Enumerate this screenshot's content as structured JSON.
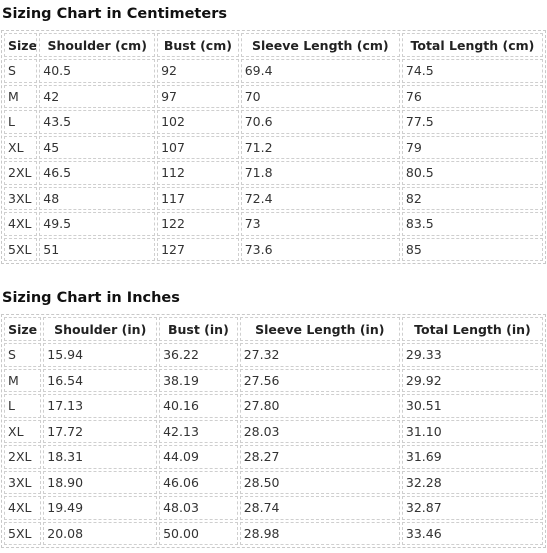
{
  "tables": [
    {
      "title": "Sizing Chart in Centimeters",
      "headers": [
        "Size",
        "Shoulder (cm)",
        "Bust (cm)",
        "Sleeve Length (cm)",
        "Total Length (cm)"
      ],
      "rows": [
        [
          "S",
          "40.5",
          "92",
          "69.4",
          "74.5"
        ],
        [
          "M",
          "42",
          "97",
          "70",
          "76"
        ],
        [
          "L",
          "43.5",
          "102",
          "70.6",
          "77.5"
        ],
        [
          "XL",
          "45",
          "107",
          "71.2",
          "79"
        ],
        [
          "2XL",
          "46.5",
          "112",
          "71.8",
          "80.5"
        ],
        [
          "3XL",
          "48",
          "117",
          "72.4",
          "82"
        ],
        [
          "4XL",
          "49.5",
          "122",
          "73",
          "83.5"
        ],
        [
          "5XL",
          "51",
          "127",
          "73.6",
          "85"
        ]
      ]
    },
    {
      "title": "Sizing Chart in Inches",
      "headers": [
        "Size",
        "Shoulder (in)",
        "Bust (in)",
        "Sleeve Length (in)",
        "Total Length (in)"
      ],
      "rows": [
        [
          "S",
          "15.94",
          "36.22",
          "27.32",
          "29.33"
        ],
        [
          "M",
          "16.54",
          "38.19",
          "27.56",
          "29.92"
        ],
        [
          "L",
          "17.13",
          "40.16",
          "27.80",
          "30.51"
        ],
        [
          "XL",
          "17.72",
          "42.13",
          "28.03",
          "31.10"
        ],
        [
          "2XL",
          "18.31",
          "44.09",
          "28.27",
          "31.69"
        ],
        [
          "3XL",
          "18.90",
          "46.06",
          "28.50",
          "32.28"
        ],
        [
          "4XL",
          "19.49",
          "48.03",
          "28.74",
          "32.87"
        ],
        [
          "5XL",
          "20.08",
          "50.00",
          "28.98",
          "33.46"
        ]
      ]
    }
  ]
}
